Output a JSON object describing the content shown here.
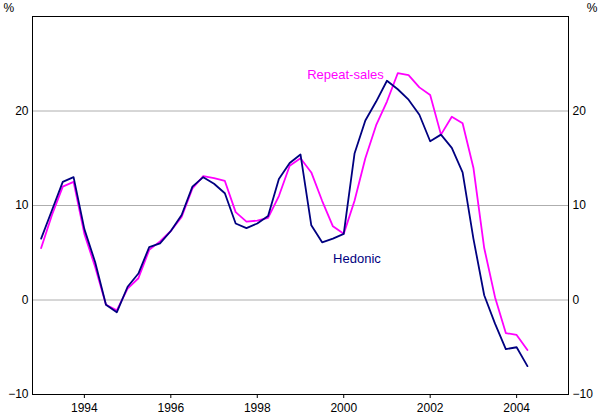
{
  "chart_data": {
    "type": "line",
    "y_label": "%",
    "x": [
      1993,
      1993.25,
      1993.5,
      1993.75,
      1994,
      1994.25,
      1994.5,
      1994.75,
      1995,
      1995.25,
      1995.5,
      1995.75,
      1996,
      1996.25,
      1996.5,
      1996.75,
      1997,
      1997.25,
      1997.5,
      1997.75,
      1998,
      1998.25,
      1998.5,
      1998.75,
      1999,
      1999.25,
      1999.5,
      1999.75,
      2000,
      2000.25,
      2000.5,
      2000.75,
      2001,
      2001.25,
      2001.5,
      2001.75,
      2002,
      2002.25,
      2002.5,
      2002.75,
      2003,
      2003.25,
      2003.5,
      2003.75,
      2004,
      2004.25
    ],
    "series": [
      {
        "name": "Repeat-sales",
        "color": "#ff00ff",
        "values": [
          5.5,
          9,
          12,
          12.5,
          7,
          3.5,
          -0.5,
          -1.1,
          1.2,
          2.3,
          5.3,
          6.2,
          7.3,
          8.8,
          11.8,
          13.1,
          12.9,
          12.6,
          9.3,
          8.3,
          8.4,
          8.7,
          11,
          14.2,
          15,
          13.5,
          10.5,
          7.8,
          7,
          10.5,
          15,
          18.5,
          21,
          24,
          23.8,
          22.5,
          21.7,
          17.5,
          19.4,
          18.7,
          14,
          5.5,
          0.3,
          -3.5,
          -3.7,
          -5.3
        ]
      },
      {
        "name": "Hedonic",
        "color": "#000080",
        "values": [
          6.5,
          9.5,
          12.5,
          13,
          7.5,
          4,
          -0.5,
          -1.3,
          1.4,
          2.8,
          5.6,
          6,
          7.3,
          9,
          12,
          13,
          12.3,
          11.3,
          8.1,
          7.6,
          8.1,
          8.9,
          12.8,
          14.5,
          15.4,
          7.9,
          6.1,
          6.5,
          7,
          15.5,
          19,
          21,
          23.2,
          22.3,
          21.2,
          19.6,
          16.8,
          17.5,
          16.1,
          13.5,
          6.5,
          0.5,
          -2.5,
          -5.2,
          -5,
          -7
        ]
      }
    ],
    "xlim": [
      1992.8,
      2005.2
    ],
    "xticks": [
      1994,
      1996,
      1998,
      2000,
      2002,
      2004
    ],
    "ylim": [
      -10,
      30
    ],
    "yticks": [
      -10,
      0,
      10,
      20
    ],
    "grid": true
  }
}
